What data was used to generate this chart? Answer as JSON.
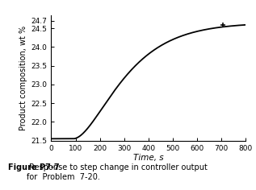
{
  "xlabel": "Time, s",
  "ylabel": "Product composition, wt %",
  "caption_bold": "Figure P7-7",
  "caption_normal": " Response to step change in controller output\nfor  Problem  7-20.",
  "xlim": [
    0,
    800
  ],
  "ylim": [
    21.5,
    24.85
  ],
  "yticks": [
    21.5,
    22.0,
    22.5,
    23.0,
    23.5,
    24.0,
    24.5,
    24.7
  ],
  "ytick_labels": [
    "21.5",
    "22.0",
    "22.5",
    "23.0",
    "23.5",
    "24.0",
    "24.5",
    "24.7"
  ],
  "xticks": [
    0,
    100,
    200,
    300,
    400,
    500,
    600,
    700,
    800
  ],
  "y_init": 21.55,
  "y_final": 24.65,
  "dead_time": 90,
  "tau1": 120,
  "tau2": 120,
  "curve_color": "#000000",
  "background_color": "#ffffff",
  "marker_x": 705,
  "marker_y": 24.58,
  "line_width": 1.3
}
